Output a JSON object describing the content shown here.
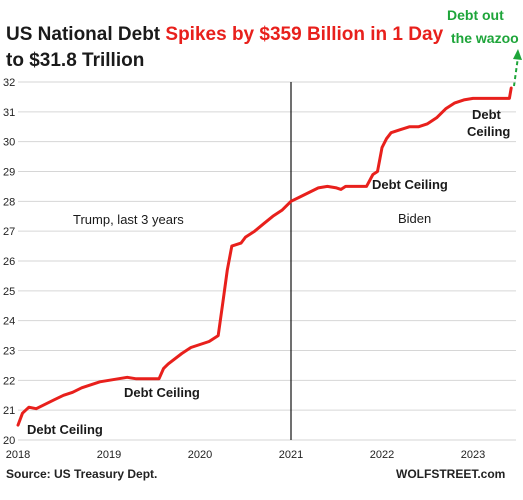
{
  "chart_data": {
    "type": "line",
    "title_part1": "US National Debt ",
    "title_part2": "Spikes by $359 Billion in 1 Day",
    "title_line2": "to $31.8 Trillion",
    "ylim": [
      20,
      32
    ],
    "y_ticks": [
      "20",
      "21",
      "22",
      "23",
      "24",
      "25",
      "26",
      "27",
      "28",
      "29",
      "30",
      "31",
      "32"
    ],
    "x_ticks": [
      "2018",
      "2019",
      "2020",
      "2021",
      "2022",
      "2023"
    ],
    "grid": true,
    "series": [
      {
        "color": "#e8201c",
        "x": [
          2018.0,
          2018.05,
          2018.12,
          2018.2,
          2018.3,
          2018.4,
          2018.5,
          2018.6,
          2018.7,
          2018.8,
          2018.9,
          2019.0,
          2019.1,
          2019.2,
          2019.3,
          2019.4,
          2019.55,
          2019.6,
          2019.65,
          2019.8,
          2019.9,
          2020.0,
          2020.1,
          2020.2,
          2020.25,
          2020.3,
          2020.35,
          2020.45,
          2020.5,
          2020.6,
          2020.7,
          2020.8,
          2020.9,
          2021.0,
          2021.1,
          2021.2,
          2021.3,
          2021.4,
          2021.5,
          2021.55,
          2021.6,
          2021.75,
          2021.83,
          2021.9,
          2021.95,
          2022.0,
          2022.05,
          2022.1,
          2022.2,
          2022.3,
          2022.4,
          2022.5,
          2022.6,
          2022.7,
          2022.8,
          2022.9,
          2023.0,
          2023.05,
          2023.1,
          2023.2,
          2023.3,
          2023.35,
          2023.4,
          2023.42
        ],
        "y": [
          20.5,
          20.9,
          21.1,
          21.05,
          21.2,
          21.35,
          21.5,
          21.6,
          21.75,
          21.85,
          21.95,
          22.0,
          22.05,
          22.1,
          22.05,
          22.05,
          22.05,
          22.4,
          22.55,
          22.9,
          23.1,
          23.2,
          23.3,
          23.5,
          24.6,
          25.7,
          26.5,
          26.6,
          26.8,
          27.0,
          27.25,
          27.5,
          27.7,
          28.0,
          28.15,
          28.3,
          28.45,
          28.5,
          28.45,
          28.4,
          28.5,
          28.5,
          28.5,
          28.9,
          29.0,
          29.8,
          30.1,
          30.3,
          30.4,
          30.5,
          30.5,
          30.6,
          30.8,
          31.1,
          31.3,
          31.4,
          31.45,
          31.45,
          31.45,
          31.45,
          31.45,
          31.45,
          31.45,
          31.8
        ]
      }
    ],
    "annotations": {
      "trump": "Trump, last 3 years",
      "biden": "Biden",
      "debt_ceiling_label": "Debt Ceiling",
      "debt_ceiling_2023_line1": "Debt",
      "debt_ceiling_2023_line2": "Ceiling",
      "wazoo_line1": "Debt out",
      "wazoo_line2": "the wazoo"
    },
    "source": "Source: US Treasury Dept.",
    "brand": "WOLFSTREET.com"
  },
  "colors": {
    "title_black": "#1a1a1a",
    "title_red": "#e8201c",
    "line_red": "#e8201c",
    "green": "#1ea53a",
    "grid": "#d6d6d6",
    "divider": "#111111"
  }
}
